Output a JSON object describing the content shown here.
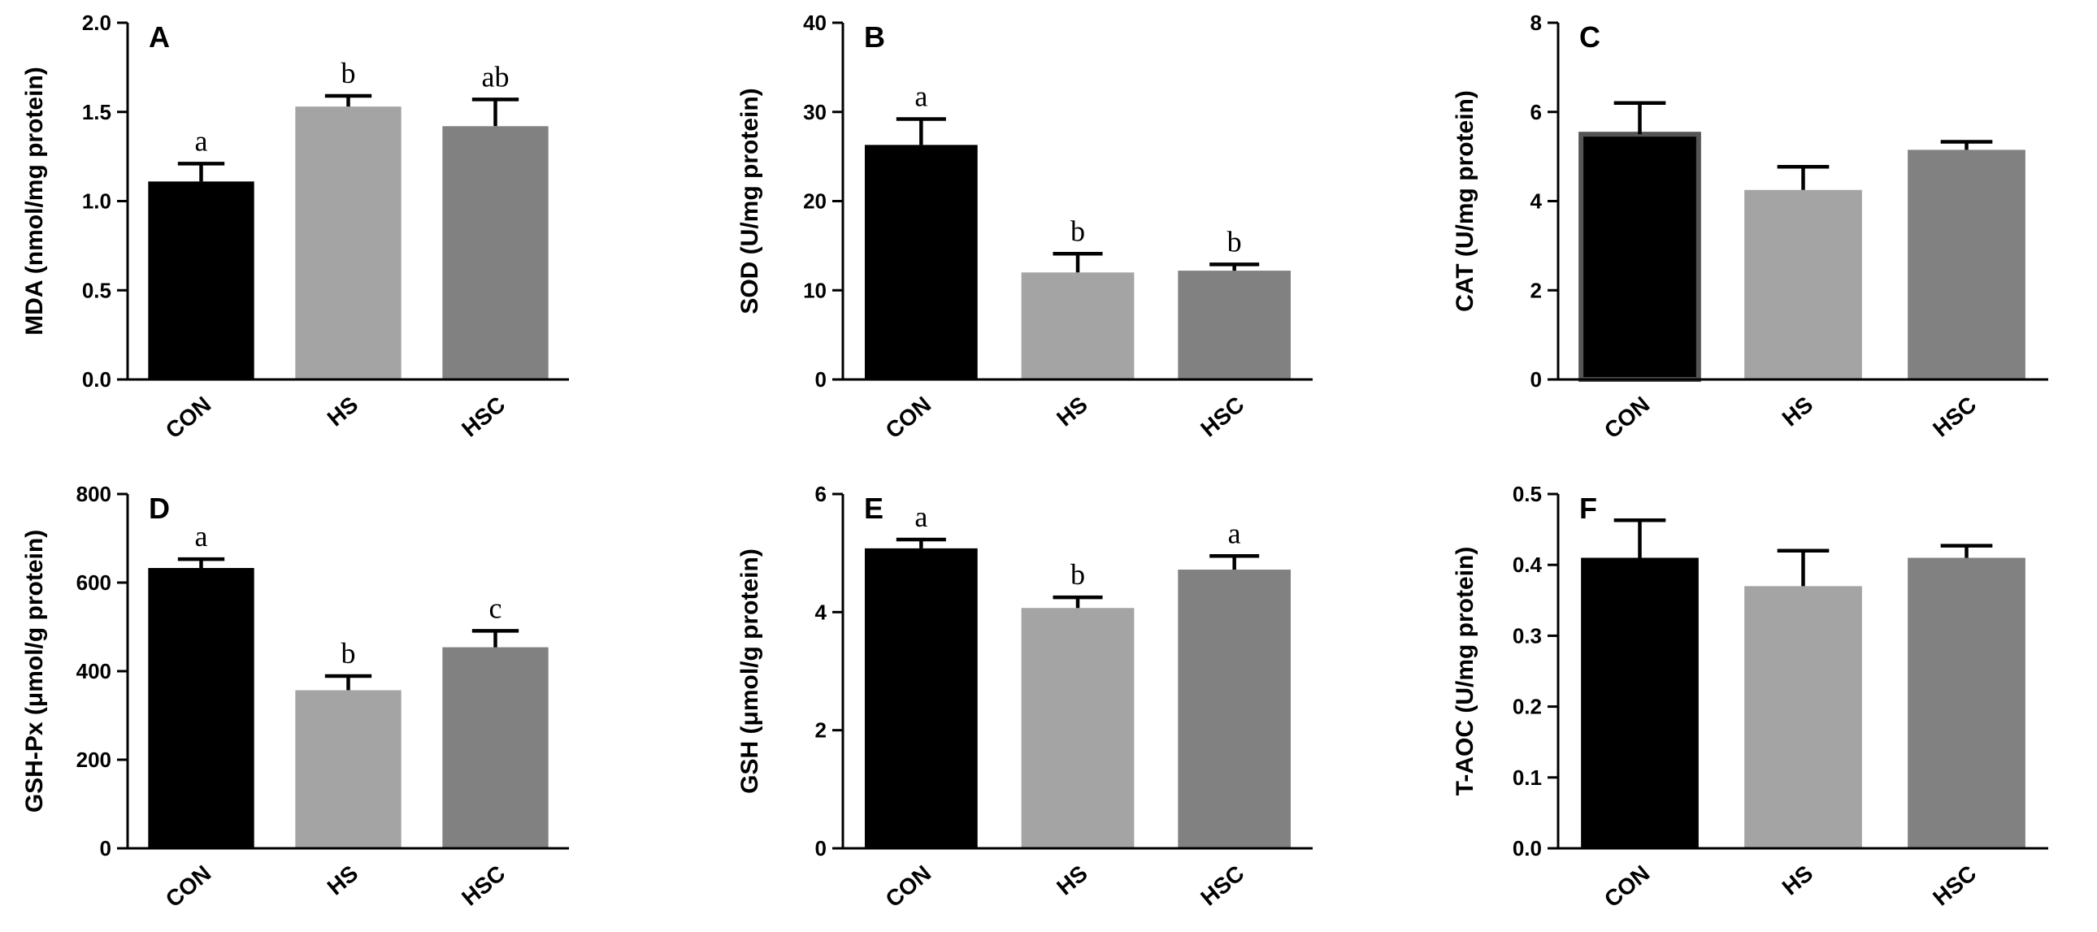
{
  "palette": {
    "CON": "#000000",
    "HS": "#a4a4a4",
    "HSC": "#818181",
    "axis": "#000000"
  },
  "chart_data": [
    {
      "panel": "A",
      "type": "bar",
      "categories": [
        "CON",
        "HS",
        "HSC"
      ],
      "values": [
        1.11,
        1.53,
        1.42
      ],
      "errors": [
        0.1,
        0.06,
        0.15
      ],
      "sig": [
        "a",
        "b",
        "ab"
      ],
      "ylabel": "MDA (nmol/mg protein)",
      "ylim": [
        0,
        2.0
      ],
      "yticks": [
        "0.0",
        "0.5",
        "1.0",
        "1.5",
        "2.0"
      ]
    },
    {
      "panel": "B",
      "type": "bar",
      "categories": [
        "CON",
        "HS",
        "HSC"
      ],
      "values": [
        26.3,
        12.0,
        12.2
      ],
      "errors": [
        2.9,
        2.1,
        0.7
      ],
      "sig": [
        "a",
        "b",
        "b"
      ],
      "ylabel": "SOD (U/mg protein)",
      "ylim": [
        0,
        40
      ],
      "yticks": [
        "0",
        "10",
        "20",
        "30",
        "40"
      ]
    },
    {
      "panel": "C",
      "type": "bar",
      "categories": [
        "CON",
        "HS",
        "HSC"
      ],
      "values": [
        5.5,
        4.25,
        5.15
      ],
      "errors": [
        0.7,
        0.52,
        0.18
      ],
      "sig": [
        "",
        "",
        ""
      ],
      "ylabel": "CAT (U/mg protein)",
      "ylim": [
        0,
        8
      ],
      "yticks": [
        "0",
        "2",
        "4",
        "6",
        "8"
      ]
    },
    {
      "panel": "D",
      "type": "bar",
      "categories": [
        "CON",
        "HS",
        "HSC"
      ],
      "values": [
        633,
        357,
        454
      ],
      "errors": [
        20,
        32,
        37
      ],
      "sig": [
        "a",
        "b",
        "c"
      ],
      "ylabel": "GSH-Px (μmol/g protein)",
      "ylim": [
        0,
        800
      ],
      "yticks": [
        "0",
        "200",
        "400",
        "600",
        "800"
      ]
    },
    {
      "panel": "E",
      "type": "bar",
      "categories": [
        "CON",
        "HS",
        "HSC"
      ],
      "values": [
        5.08,
        4.07,
        4.72
      ],
      "errors": [
        0.15,
        0.18,
        0.23
      ],
      "sig": [
        "a",
        "b",
        "a"
      ],
      "ylabel": "GSH (μmol/g protein)",
      "ylim": [
        0,
        6
      ],
      "yticks": [
        "0",
        "2",
        "4",
        "6"
      ]
    },
    {
      "panel": "F",
      "type": "bar",
      "categories": [
        "CON",
        "HS",
        "HSC"
      ],
      "values": [
        0.41,
        0.37,
        0.41
      ],
      "errors": [
        0.053,
        0.05,
        0.017
      ],
      "sig": [
        "",
        "",
        ""
      ],
      "ylabel": "T-AOC (U/mg protein)",
      "ylim": [
        0,
        0.5
      ],
      "yticks": [
        "0.0",
        "0.1",
        "0.2",
        "0.3",
        "0.4",
        "0.5"
      ]
    }
  ]
}
